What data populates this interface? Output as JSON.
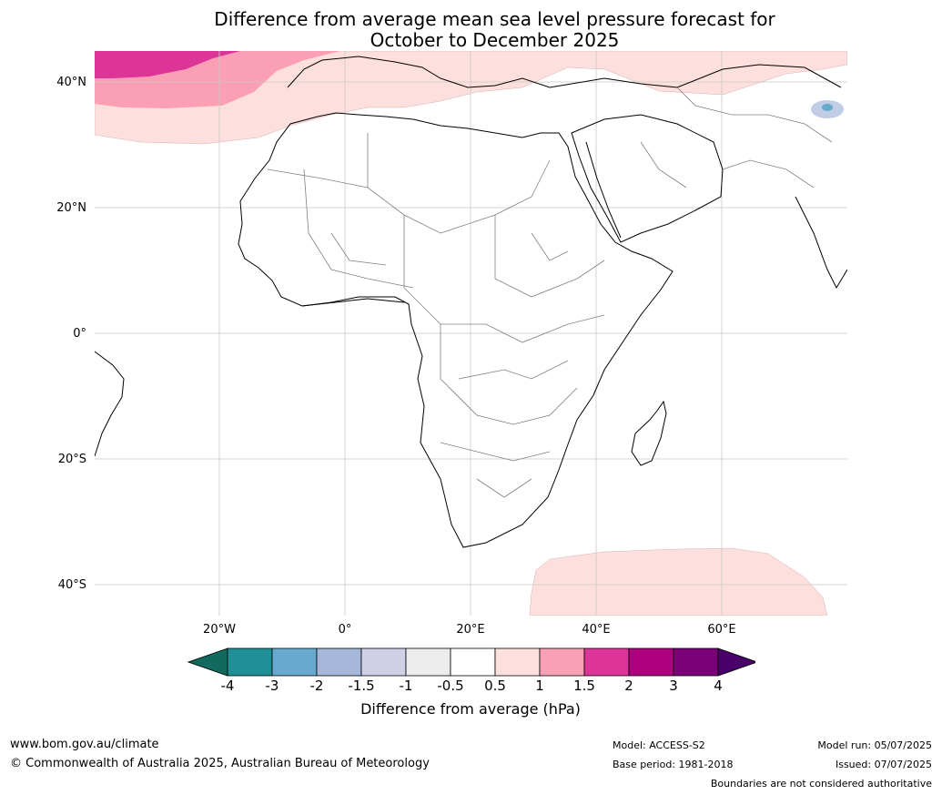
{
  "title_line1": "Difference from average mean sea level pressure forecast for",
  "title_line2": "October to December 2025",
  "lat_labels": [
    "40°N",
    "20°N",
    "0°",
    "20°S",
    "40°S"
  ],
  "lon_labels": [
    "20°W",
    "0°",
    "20°E",
    "40°E",
    "60°E"
  ],
  "colorbar": {
    "ticks": [
      "-4",
      "-3",
      "-2",
      "-1.5",
      "-1",
      "-0.5",
      "0.5",
      "1",
      "1.5",
      "2",
      "3",
      "4"
    ],
    "colors": [
      "#116a5e",
      "#1f9196",
      "#67a9cf",
      "#a6b8da",
      "#d0d1e6",
      "#ececec",
      "#ffffff",
      "#fde0dd",
      "#fa9fb5",
      "#dd3497",
      "#ae017e",
      "#7a0177",
      "#49006a"
    ],
    "label": "Difference from average (hPa)"
  },
  "footer": {
    "url": "www.bom.gov.au/climate",
    "copyright": "© Commonwealth of Australia 2025, Australian Bureau of Meteorology",
    "model": "Model: ACCESS-S2",
    "base_period": "Base period: 1981-2018",
    "model_run": "Model run: 05/07/2025",
    "issued": "Issued: 07/07/2025",
    "disclaimer": "Boundaries are not considered authoritative"
  }
}
